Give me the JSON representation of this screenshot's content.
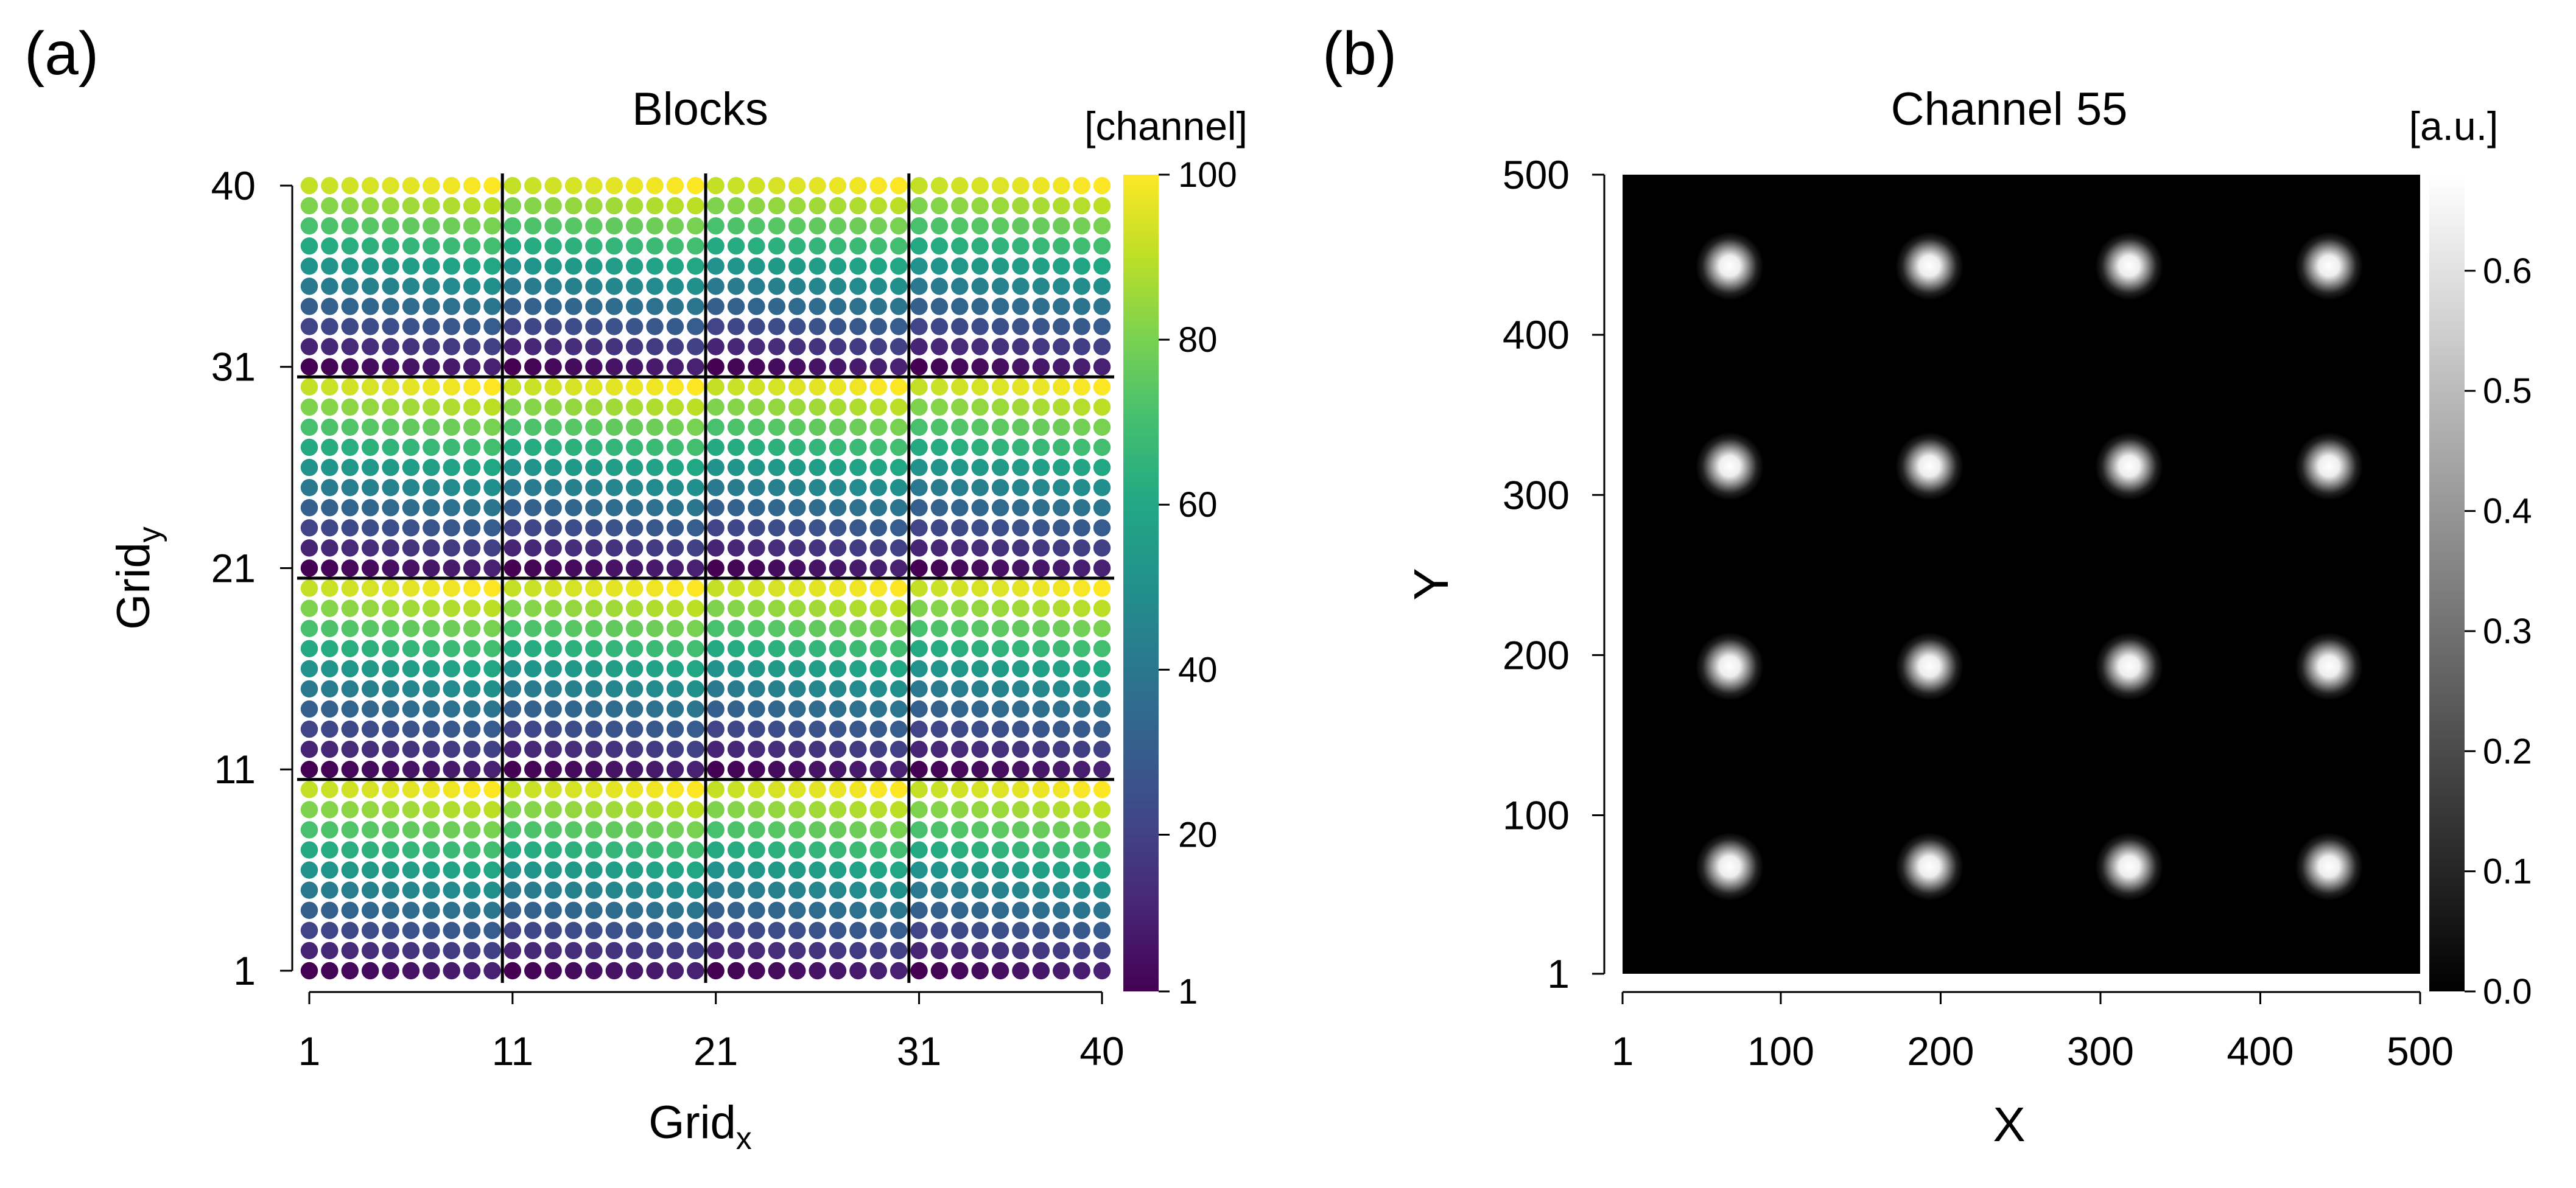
{
  "panels": {
    "a": {
      "label": "(a)"
    },
    "b": {
      "label": "(b)"
    }
  },
  "chart_data": [
    {
      "type": "scatter",
      "title": "Blocks",
      "xlabel": "Grid",
      "xlabel_sub": "x",
      "ylabel": "Grid",
      "ylabel_sub": "y",
      "xticks": [
        "1",
        "11",
        "21",
        "31",
        "40"
      ],
      "yticks": [
        "1",
        "11",
        "21",
        "31",
        "40"
      ],
      "xlim": [
        1,
        40
      ],
      "ylim": [
        1,
        40
      ],
      "grid_size": [
        40,
        40
      ],
      "block_size": [
        10,
        10
      ],
      "block_boundaries": [
        10.5,
        20.5,
        30.5
      ],
      "value_rule": "channel = (x-1) mod 10 + 10 * ((y-1) mod 10) + 1",
      "colorbar": {
        "label": "[channel]",
        "colormap": "viridis",
        "range": [
          1,
          100
        ],
        "ticks": [
          "1",
          "20",
          "40",
          "60",
          "80",
          "100"
        ]
      }
    },
    {
      "type": "heatmap",
      "title": "Channel 55",
      "xlabel": "X",
      "ylabel": "Y",
      "xticks": [
        "1",
        "100",
        "200",
        "300",
        "400",
        "500"
      ],
      "yticks": [
        "1",
        "100",
        "200",
        "300",
        "400",
        "500"
      ],
      "xlim": [
        1,
        500
      ],
      "ylim": [
        1,
        500
      ],
      "spots_x": [
        68,
        193,
        318,
        443
      ],
      "spots_y": [
        68,
        193,
        318,
        443
      ],
      "spot_peak": 0.68,
      "colorbar": {
        "label": "[a.u.]",
        "colormap": "gray",
        "range": [
          0.0,
          0.68
        ],
        "ticks": [
          "0.0",
          "0.1",
          "0.2",
          "0.3",
          "0.4",
          "0.5",
          "0.6"
        ]
      }
    }
  ]
}
